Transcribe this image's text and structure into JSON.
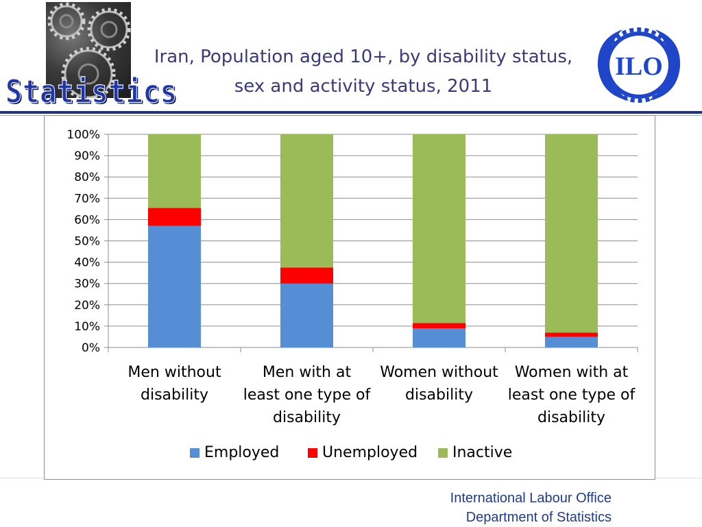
{
  "header": {
    "brand_word": "Statistics",
    "title_line1": "Iran, Population aged 10+, by disability status,",
    "title_line2": "sex and activity status, 2011",
    "logo_text": "ILO"
  },
  "footer": {
    "line1": "International Labour Office",
    "line2": "Department of Statistics"
  },
  "chart_data": {
    "type": "bar",
    "stacked": true,
    "percent": true,
    "categories": [
      [
        "Men without",
        "disability"
      ],
      [
        "Men with at",
        "least one type of",
        "disability"
      ],
      [
        "Women without",
        "disability"
      ],
      [
        "Women with at",
        "least one type of",
        "disability"
      ]
    ],
    "series": [
      {
        "name": "Employed",
        "color": "#558ED5",
        "values": [
          57,
          30,
          9,
          5
        ]
      },
      {
        "name": "Unemployed",
        "color": "#FF0000",
        "values": [
          8.5,
          7.5,
          2.5,
          2
        ]
      },
      {
        "name": "Inactive",
        "color": "#9BBB59",
        "values": [
          34.5,
          62.5,
          88.5,
          93
        ]
      }
    ],
    "ylim": [
      0,
      100
    ],
    "yticks": [
      "0%",
      "10%",
      "20%",
      "30%",
      "40%",
      "50%",
      "60%",
      "70%",
      "80%",
      "90%",
      "100%"
    ],
    "grid": true,
    "legend": "bottom"
  }
}
